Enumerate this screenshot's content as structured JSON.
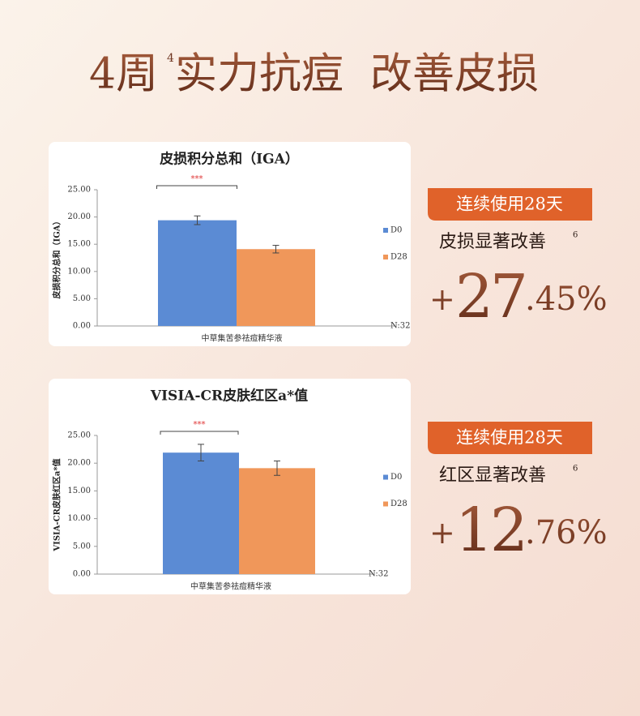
{
  "header": {
    "lead": "4周",
    "note": "4",
    "text": "实力抗痘  改善皮损"
  },
  "chart_data": [
    {
      "type": "bar",
      "title": "皮损积分总和（IGA）",
      "ylabel": "皮损积分总和（IGA）",
      "categories": [
        "中草集苦参祛痘精华液"
      ],
      "series": [
        {
          "name": "D0",
          "color": "#5b8bd4",
          "values": [
            19.4
          ],
          "errors": [
            0.8
          ]
        },
        {
          "name": "D28",
          "color": "#f0975a",
          "values": [
            14.1
          ],
          "errors": [
            0.7
          ]
        }
      ],
      "ylim": [
        0,
        25
      ],
      "yticks": [
        {
          "value": 0,
          "label": "0.00"
        },
        {
          "value": 5,
          "label": "5.00"
        },
        {
          "value": 10,
          "label": "10.00"
        },
        {
          "value": 15,
          "label": "15.00"
        },
        {
          "value": 20,
          "label": "20.00"
        },
        {
          "value": 25,
          "label": "25.00"
        }
      ],
      "annotation": "***",
      "note": "N:32",
      "legend": "right"
    },
    {
      "type": "bar",
      "title": "VISIA-CR皮肤红区a*值",
      "ylabel": "VISIA-CR皮肤红区a*值",
      "categories": [
        "中草集苦参祛痘精华液"
      ],
      "series": [
        {
          "name": "D0",
          "color": "#5b8bd4",
          "values": [
            21.9
          ],
          "errors": [
            1.5
          ]
        },
        {
          "name": "D28",
          "color": "#f0975a",
          "values": [
            19.1
          ],
          "errors": [
            1.3
          ]
        }
      ],
      "ylim": [
        0,
        25
      ],
      "yticks": [
        {
          "value": 0,
          "label": "0.00"
        },
        {
          "value": 5,
          "label": "5.00"
        },
        {
          "value": 10,
          "label": "10.00"
        },
        {
          "value": 15,
          "label": "15.00"
        },
        {
          "value": 20,
          "label": "20.00"
        },
        {
          "value": 25,
          "label": "25.00"
        }
      ],
      "annotation": "***",
      "note": "N:32",
      "legend": "right"
    }
  ],
  "panels": [
    {
      "badge": "连续使用28天",
      "claim": "皮损显著改善",
      "note": "6",
      "sign": "+",
      "big": "27",
      "small": ".45%"
    },
    {
      "badge": "连续使用28天",
      "claim": "红区显著改善",
      "note": "6",
      "sign": "+",
      "big": "12",
      "small": ".76%"
    }
  ]
}
